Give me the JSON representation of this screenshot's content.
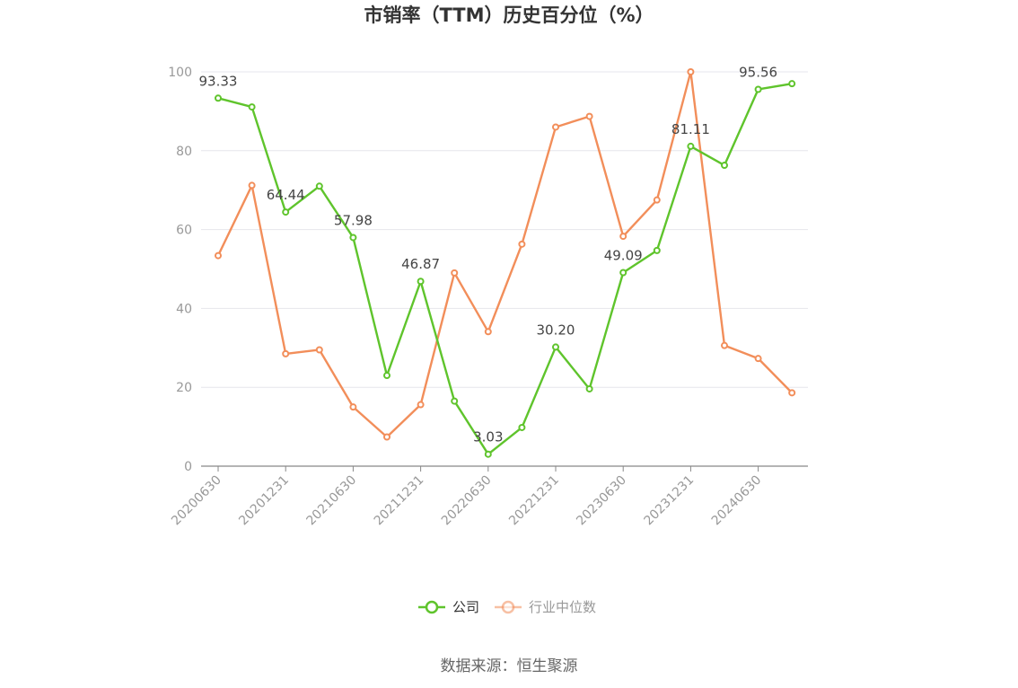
{
  "chart_data": {
    "type": "line",
    "title": "市销率（TTM）历史百分位（%）",
    "source": "数据来源：恒生聚源",
    "ylim": [
      0,
      100
    ],
    "yticks": [
      0,
      20,
      40,
      60,
      80,
      100
    ],
    "x": [
      "20200630",
      "20200930",
      "20201231",
      "20210331",
      "20210630",
      "20210930",
      "20211231",
      "20220331",
      "20220630",
      "20220930",
      "20221231",
      "20230331",
      "20230630",
      "20230930",
      "20231231",
      "20240331",
      "20240630",
      "20240930"
    ],
    "x_tick_labels": [
      "20200630",
      "20201231",
      "20210630",
      "20211231",
      "20220630",
      "20221231",
      "20230630",
      "20231231",
      "20240630"
    ],
    "grid": "horizontal",
    "legend_position": "bottom-center",
    "series": [
      {
        "name": "公司",
        "color": "#5fc42c",
        "values": [
          93.33,
          91.1,
          64.44,
          71.0,
          57.98,
          23.0,
          46.87,
          16.5,
          3.03,
          9.8,
          30.2,
          19.6,
          49.09,
          54.7,
          81.11,
          76.3,
          95.56,
          97.0
        ],
        "labels": [
          "93.33",
          null,
          "64.44",
          null,
          "57.98",
          null,
          "46.87",
          null,
          "3.03",
          null,
          "30.20",
          null,
          "49.09",
          null,
          "81.11",
          null,
          "95.56",
          null
        ]
      },
      {
        "name": "行业中位数",
        "color": "#f28e5a",
        "values": [
          53.4,
          71.2,
          28.5,
          29.5,
          15.0,
          7.4,
          15.6,
          49.0,
          34.1,
          56.3,
          86.0,
          88.7,
          58.3,
          67.5,
          100.0,
          30.6,
          27.3,
          18.6
        ]
      }
    ]
  }
}
